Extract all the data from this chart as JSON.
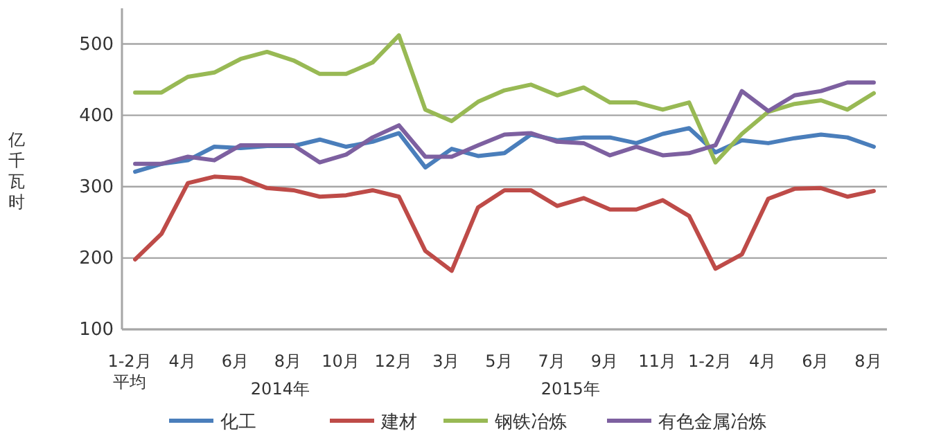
{
  "chart_data": {
    "type": "line",
    "ylabel": "亿千瓦时",
    "categories": [
      "1-2月平均",
      null,
      "4月",
      null,
      "6月",
      null,
      "8月",
      null,
      "10月",
      null,
      "12月",
      null,
      "3月",
      null,
      "5月",
      null,
      "7月",
      null,
      "9月",
      null,
      "11月",
      null,
      "1-2月",
      null,
      "4月",
      null,
      "6月",
      null,
      "8月"
    ],
    "series": [
      {
        "name": "化工",
        "color": "#4a7ebb",
        "values": [
          321,
          332,
          337,
          356,
          354,
          357,
          357,
          366,
          356,
          363,
          375,
          327,
          353,
          343,
          347,
          373,
          365,
          369,
          369,
          361,
          374,
          382,
          348,
          365,
          361,
          368,
          373,
          369,
          356
        ]
      },
      {
        "name": "建材",
        "color": "#be4b48",
        "values": [
          198,
          234,
          305,
          314,
          312,
          298,
          295,
          286,
          288,
          295,
          286,
          210,
          182,
          271,
          295,
          295,
          273,
          284,
          268,
          268,
          281,
          259,
          185,
          205,
          283,
          297,
          298,
          286,
          294
        ]
      },
      {
        "name": "钢铁冶炼",
        "color": "#98b954",
        "values": [
          432,
          432,
          454,
          460,
          479,
          489,
          477,
          458,
          458,
          474,
          512,
          408,
          392,
          419,
          435,
          443,
          428,
          439,
          418,
          418,
          408,
          418,
          334,
          374,
          405,
          416,
          421,
          408,
          431
        ]
      },
      {
        "name": "有色金属冶炼",
        "color": "#7d60a0",
        "values": [
          332,
          332,
          342,
          337,
          358,
          358,
          358,
          334,
          345,
          369,
          386,
          342,
          342,
          358,
          373,
          375,
          363,
          361,
          344,
          356,
          344,
          347,
          358,
          434,
          406,
          428,
          434,
          446,
          446
        ]
      }
    ],
    "annotations": [
      "2014年",
      "2015年"
    ],
    "ylim": [
      100,
      550
    ],
    "yticks": [
      100,
      200,
      300,
      400,
      500
    ],
    "grid": "y",
    "legend": "bottom",
    "marker": "none",
    "line_style": "solid"
  }
}
